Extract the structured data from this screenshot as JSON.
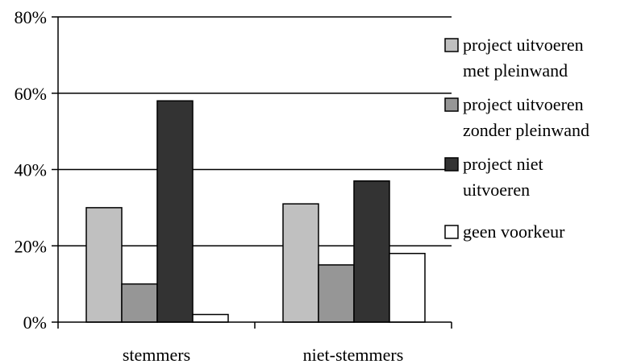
{
  "chart_data": {
    "type": "bar",
    "categories": [
      "stemmers",
      "niet-stemmers"
    ],
    "series": [
      {
        "name_lines": [
          "project uitvoeren",
          "met pleinwand"
        ],
        "values": [
          30,
          31
        ],
        "color": "#c0c0c0"
      },
      {
        "name_lines": [
          "project uitvoeren",
          "zonder pleinwand"
        ],
        "values": [
          10,
          15
        ],
        "color": "#969696"
      },
      {
        "name_lines": [
          "project niet",
          "uitvoeren"
        ],
        "values": [
          58,
          37
        ],
        "color": "#333333"
      },
      {
        "name_lines": [
          "geen voorkeur"
        ],
        "values": [
          2,
          18
        ],
        "color": "#ffffff"
      }
    ],
    "ylim": [
      0,
      80
    ],
    "yticks": [
      {
        "value": 0,
        "label": "0%"
      },
      {
        "value": 20,
        "label": "20%"
      },
      {
        "value": 40,
        "label": "40%"
      },
      {
        "value": 60,
        "label": "60%"
      },
      {
        "value": 80,
        "label": "80%"
      }
    ],
    "grid": true,
    "legend": "right"
  }
}
